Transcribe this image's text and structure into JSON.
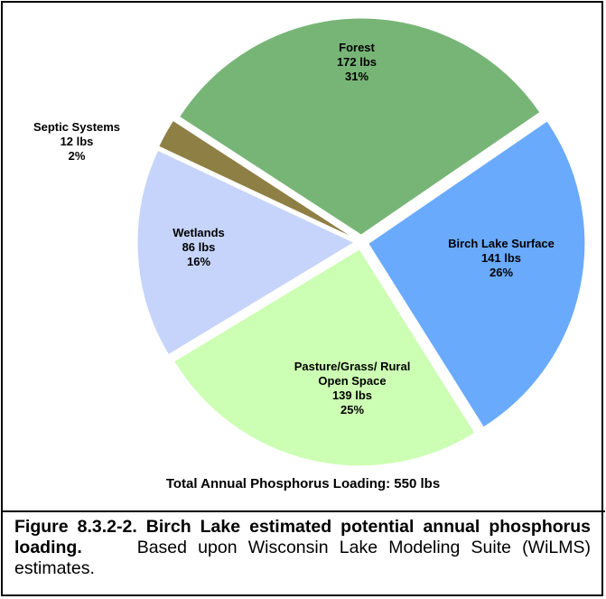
{
  "chart_data": {
    "type": "pie",
    "categories": [
      "Forest",
      "Birch Lake Surface",
      "Pasture/Grass/ Rural Open Space",
      "Wetlands",
      "Septic Systems"
    ],
    "values": [
      172,
      141,
      139,
      86,
      12
    ],
    "value_labels": [
      "172 lbs",
      "141 lbs",
      "139 lbs",
      "86 lbs",
      "12 lbs"
    ],
    "percent_labels": [
      "31%",
      "26%",
      "25%",
      "16%",
      "2%"
    ],
    "colors": [
      "#77b577",
      "#6aaafc",
      "#ccffb3",
      "#c6d4fb",
      "#8e7f45"
    ],
    "annotation": "Total Annual Phosphorus Loading: 550 lbs"
  },
  "caption": {
    "title": "Figure 8.3.2-2.  Birch Lake estimated potential annual phosphorus loading.",
    "text": "Based upon Wisconsin Lake Modeling Suite (WiLMS) estimates."
  }
}
